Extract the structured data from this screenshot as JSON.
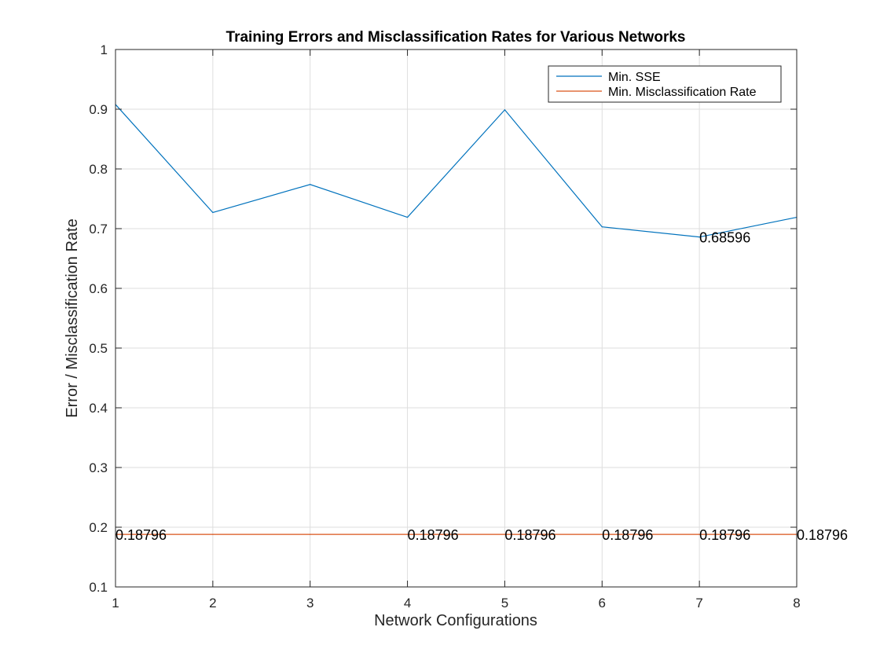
{
  "chart_data": {
    "type": "line",
    "title": "Training Errors and Misclassification Rates for Various Networks",
    "xlabel": "Network Configurations",
    "ylabel": "Error / Misclassification Rate",
    "x": [
      1,
      2,
      3,
      4,
      5,
      6,
      7,
      8
    ],
    "xlim": [
      1,
      8
    ],
    "ylim": [
      0.1,
      1
    ],
    "xticks": [
      "1",
      "2",
      "3",
      "4",
      "5",
      "6",
      "7",
      "8"
    ],
    "yticks": [
      "0.1",
      "0.2",
      "0.3",
      "0.4",
      "0.5",
      "0.6",
      "0.7",
      "0.8",
      "0.9",
      "1"
    ],
    "grid": true,
    "legend_position": "top-right",
    "series": [
      {
        "name": "Min. SSE",
        "color": "#0072BD",
        "values": [
          0.908,
          0.727,
          0.774,
          0.719,
          0.899,
          0.703,
          0.68596,
          0.719
        ]
      },
      {
        "name": "Min. Misclassification Rate",
        "color": "#D95319",
        "values": [
          0.18796,
          0.18796,
          0.18796,
          0.18796,
          0.18796,
          0.18796,
          0.18796,
          0.18796
        ]
      }
    ],
    "annotations": [
      {
        "x": 1,
        "y": 0.18796,
        "text": "0.18796"
      },
      {
        "x": 4,
        "y": 0.18796,
        "text": "0.18796"
      },
      {
        "x": 5,
        "y": 0.18796,
        "text": "0.18796"
      },
      {
        "x": 6,
        "y": 0.18796,
        "text": "0.18796"
      },
      {
        "x": 7,
        "y": 0.18796,
        "text": "0.18796"
      },
      {
        "x": 8,
        "y": 0.18796,
        "text": "0.18796"
      },
      {
        "x": 7,
        "y": 0.68596,
        "text": "0.68596"
      }
    ]
  }
}
